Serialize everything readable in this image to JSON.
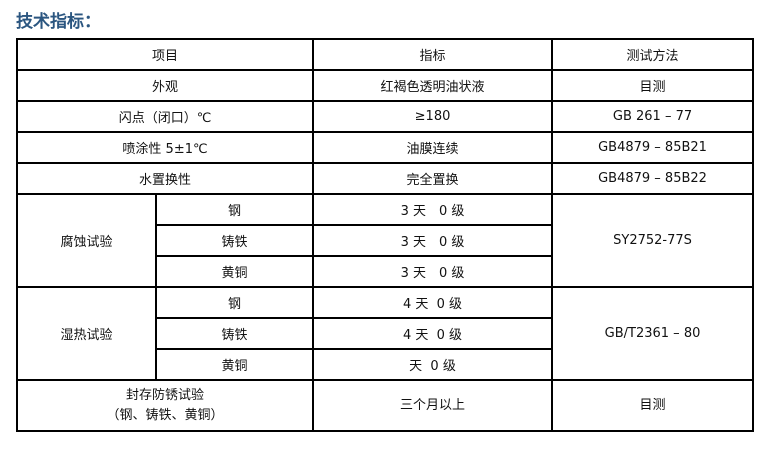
{
  "title": "技术指标：",
  "header": {
    "item": "项目",
    "spec": "指标",
    "method": "测试方法"
  },
  "rows": [
    {
      "item": "外观",
      "spec": "红褐色透明油状液",
      "method": "目测"
    },
    {
      "item": "闪点（闭口）℃",
      "spec": "≥180",
      "method": "GB 261 – 77"
    },
    {
      "item": "喷涂性 5±1℃",
      "spec": "油膜连续",
      "method": "GB4879 – 85B21"
    },
    {
      "item": "水置换性",
      "spec": "完全置换",
      "method": "GB4879 – 85B22"
    }
  ],
  "groups": [
    {
      "item": "腐蚀试验",
      "method": "SY2752-77S",
      "sub": [
        {
          "metal": "钢",
          "spec": "3 天　0 级"
        },
        {
          "metal": "铸铁",
          "spec": "3 天　0 级"
        },
        {
          "metal": "黄铜",
          "spec": "3 天　0 级"
        }
      ]
    },
    {
      "item": "湿热试验",
      "method": "GB/T2361 – 80",
      "sub": [
        {
          "metal": "钢",
          "spec": "4 天  0 级"
        },
        {
          "metal": "铸铁",
          "spec": "4 天  0 级"
        },
        {
          "metal": "黄铜",
          "spec": "天  0 级"
        }
      ]
    }
  ],
  "storage": {
    "item_line1": "封存防锈试验",
    "item_line2": "（钢、铸铁、黄铜）",
    "spec": "三个月以上",
    "method": "目测"
  }
}
